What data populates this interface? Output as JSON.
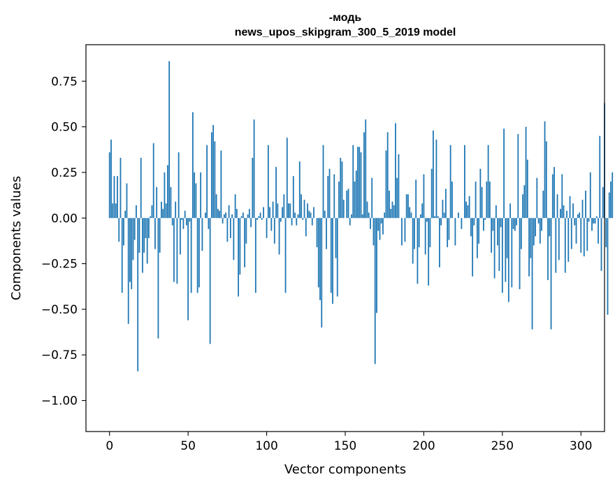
{
  "chart_data": {
    "type": "bar",
    "title_line1": "-модь",
    "title_line2": "news_upos_skipgram_300_5_2019 model",
    "xlabel": "Vector components",
    "ylabel": "Components values",
    "xlim": [
      -15,
      315
    ],
    "ylim": [
      -1.17,
      0.95
    ],
    "xticks": [
      0,
      50,
      100,
      150,
      200,
      250,
      300
    ],
    "yticks": [
      -1.0,
      -0.75,
      -0.5,
      -0.25,
      0.0,
      0.25,
      0.5,
      0.75
    ],
    "ytick_labels": [
      "−1.00",
      "−0.75",
      "−0.50",
      "−0.25",
      "0.00",
      "0.25",
      "0.50",
      "0.75"
    ],
    "xtick_labels": [
      "0",
      "50",
      "100",
      "150",
      "200",
      "250",
      "300"
    ],
    "bar_color": "#1f77b4",
    "values": [
      0.36,
      0.43,
      0.08,
      0.23,
      0.08,
      0.23,
      -0.13,
      0.33,
      -0.41,
      -0.15,
      0.04,
      0.19,
      -0.58,
      -0.35,
      -0.39,
      -0.23,
      -0.12,
      0.07,
      -0.84,
      -0.19,
      0.33,
      -0.3,
      -0.19,
      -0.11,
      -0.25,
      -0.11,
      0.01,
      0.07,
      0.41,
      -0.17,
      0.17,
      -0.66,
      -0.19,
      0.09,
      0.05,
      0.25,
      0.08,
      0.29,
      0.86,
      0.17,
      -0.04,
      -0.35,
      0.09,
      -0.36,
      0.36,
      -0.2,
      -0.01,
      -0.06,
      0.04,
      -0.04,
      -0.56,
      -0.02,
      -0.41,
      0.58,
      0.25,
      0.19,
      -0.41,
      -0.38,
      0.25,
      -0.18,
      0.0,
      0.03,
      0.4,
      -0.06,
      -0.69,
      0.47,
      0.51,
      0.42,
      0.13,
      0.05,
      0.04,
      0.37,
      -0.03,
      0.02,
      0.03,
      -0.13,
      0.07,
      -0.11,
      0.02,
      -0.23,
      0.13,
      0.05,
      -0.43,
      -0.31,
      0.01,
      0.03,
      -0.27,
      -0.14,
      0.02,
      0.05,
      -0.05,
      0.33,
      0.54,
      -0.41,
      -0.01,
      0.01,
      0.03,
      -0.01,
      0.06,
      0.0,
      -0.11,
      0.4,
      0.06,
      -0.07,
      0.09,
      -0.14,
      0.28,
      0.08,
      -0.2,
      -0.02,
      0.06,
      0.13,
      -0.41,
      0.44,
      0.08,
      0.08,
      -0.04,
      0.23,
      0.03,
      -0.04,
      0.02,
      0.31,
      0.13,
      -0.01,
      0.1,
      -0.1,
      0.08,
      0.04,
      0.03,
      -0.04,
      0.06,
      0.0,
      -0.16,
      -0.38,
      -0.45,
      -0.6,
      0.4,
      0.04,
      -0.17,
      0.23,
      0.27,
      -0.41,
      -0.47,
      0.24,
      -0.22,
      -0.43,
      0.2,
      0.33,
      0.31,
      0.1,
      0.0,
      0.15,
      0.16,
      -0.04,
      0.02,
      0.4,
      0.2,
      0.26,
      0.39,
      0.39,
      0.36,
      0.02,
      0.47,
      0.54,
      0.09,
      0.03,
      -0.06,
      0.22,
      -0.15,
      -0.8,
      -0.52,
      -0.07,
      -0.12,
      -0.03,
      -0.09,
      0.03,
      0.37,
      0.47,
      0.15,
      0.05,
      0.09,
      0.07,
      0.52,
      0.22,
      0.35,
      0.0,
      -0.15,
      0.0,
      -0.13,
      0.13,
      0.13,
      0.06,
      0.03,
      -0.25,
      -0.17,
      0.21,
      -0.36,
      -0.16,
      0.02,
      0.08,
      0.24,
      -0.2,
      -0.02,
      -0.37,
      -0.16,
      0.27,
      0.48,
      0.01,
      0.43,
      0.01,
      -0.27,
      -0.04,
      0.1,
      0.03,
      0.16,
      -0.16,
      -0.12,
      0.4,
      0.2,
      0.0,
      -0.15,
      0.0,
      0.03,
      0.0,
      -0.06,
      0.0,
      0.4,
      0.09,
      0.07,
      0.12,
      -0.1,
      -0.32,
      -0.04,
      0.2,
      -0.22,
      -0.14,
      0.27,
      0.17,
      -0.07,
      -0.01,
      0.2,
      0.4,
      0.2,
      -0.19,
      -0.07,
      -0.33,
      0.07,
      -0.15,
      -0.29,
      -0.05,
      -0.41,
      0.49,
      -0.35,
      -0.22,
      -0.46,
      0.08,
      -0.38,
      -0.06,
      -0.07,
      -0.04,
      0.46,
      -0.39,
      -0.17,
      0.13,
      0.18,
      0.5,
      0.32,
      -0.32,
      -0.22,
      -0.61,
      -0.15,
      -0.1,
      0.22,
      -0.03,
      -0.14,
      -0.07,
      0.15,
      0.53,
      0.42,
      -0.34,
      -0.1,
      -0.61,
      0.24,
      0.28,
      -0.3,
      0.13,
      -0.23,
      0.05,
      0.24,
      0.07,
      -0.3,
      0.04,
      -0.24,
      0.12,
      -0.17,
      0.08,
      -0.04,
      -0.14,
      0.02,
      0.03,
      -0.19,
      0.1,
      -0.21,
      0.15,
      -0.18,
      -0.02,
      0.25,
      -0.07,
      -0.03,
      -0.03,
      0.01,
      -0.14,
      0.45,
      -0.29,
      0.17,
      0.63,
      -0.16,
      -0.53,
      0.14,
      0.2,
      0.25
    ]
  }
}
